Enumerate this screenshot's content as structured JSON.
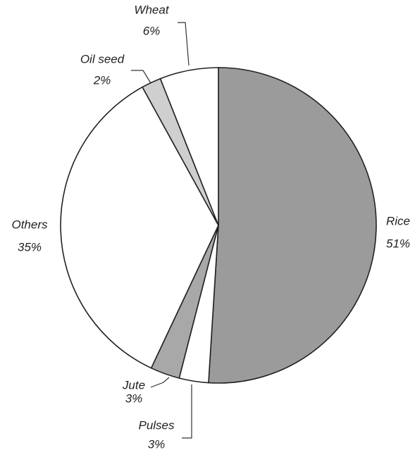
{
  "chart_data": {
    "type": "pie",
    "categories": [
      "Rice",
      "Pulses",
      "Jute",
      "Others",
      "Oil seed",
      "Wheat"
    ],
    "values": [
      51,
      3,
      3,
      35,
      2,
      6
    ],
    "value_labels": [
      "51%",
      "3%",
      "3%",
      "35%",
      "2%",
      "6%"
    ],
    "colors": [
      "#9b9b9b",
      "#ffffff",
      "#a8a8a8",
      "#ffffff",
      "#cfcfcf",
      "#ffffff"
    ]
  }
}
